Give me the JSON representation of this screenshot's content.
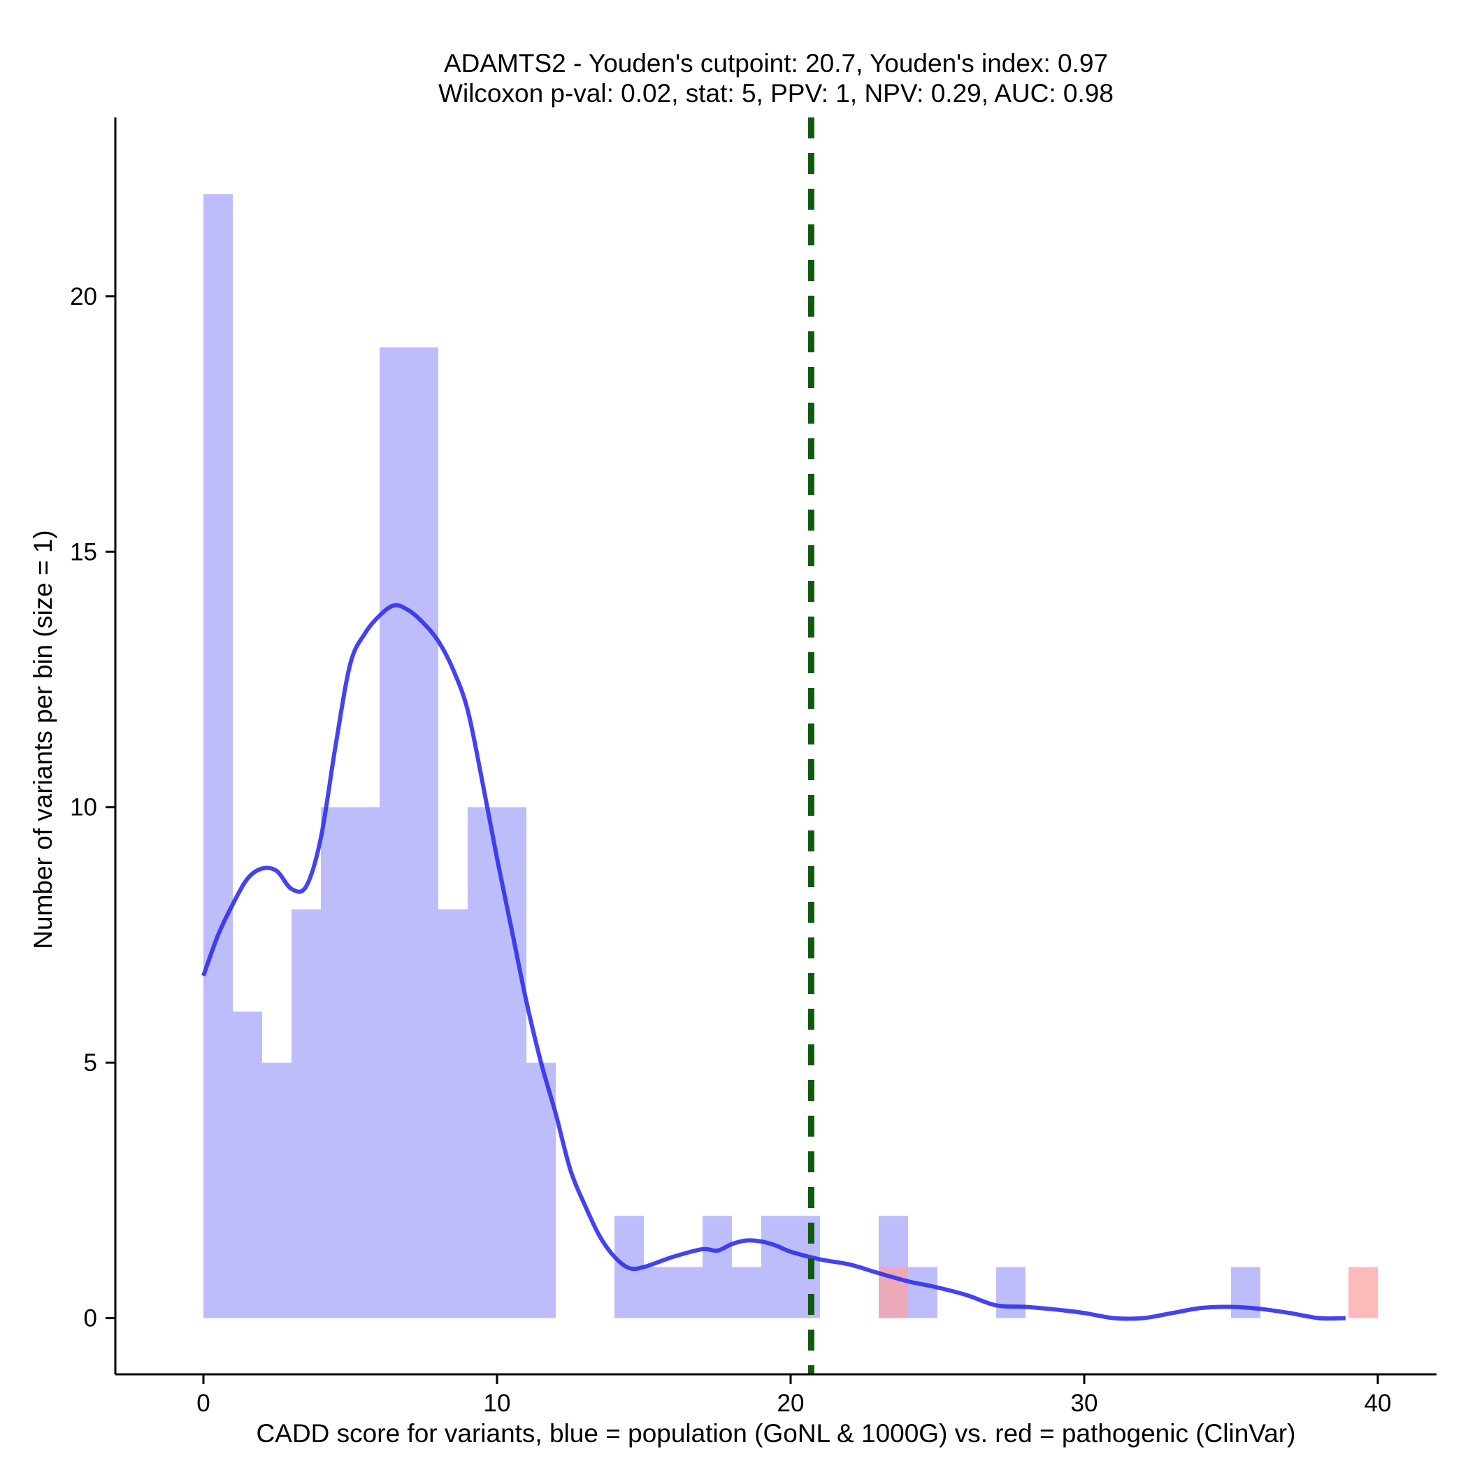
{
  "chart_data": {
    "type": "bar",
    "title_line1": "ADAMTS2 - Youden's cutpoint: 20.7, Youden's index: 0.97",
    "title_line2": "Wilcoxon p-val: 0.02, stat: 5, PPV: 1, NPV: 0.29, AUC: 0.98",
    "xlabel": "CADD score for variants, blue = population (GoNL & 1000G) vs. red = pathogenic (ClinVar)",
    "ylabel": "Number of variants per bin (size = 1)",
    "xlim": [
      -3,
      42
    ],
    "ylim": [
      -1.1,
      23.5
    ],
    "xticks": [
      0,
      10,
      20,
      30,
      40
    ],
    "yticks": [
      0,
      5,
      10,
      15,
      20
    ],
    "grid": false,
    "bin_size": 1,
    "series": [
      {
        "color": "#bdbdfb",
        "bins": [
          {
            "x0": 0,
            "x1": 1,
            "count": 22
          },
          {
            "x0": 1,
            "x1": 2,
            "count": 6
          },
          {
            "x0": 2,
            "x1": 3,
            "count": 5
          },
          {
            "x0": 3,
            "x1": 4,
            "count": 8
          },
          {
            "x0": 4,
            "x1": 5,
            "count": 10
          },
          {
            "x0": 5,
            "x1": 6,
            "count": 10
          },
          {
            "x0": 6,
            "x1": 7,
            "count": 19
          },
          {
            "x0": 7,
            "x1": 8,
            "count": 19
          },
          {
            "x0": 8,
            "x1": 9,
            "count": 8
          },
          {
            "x0": 9,
            "x1": 10,
            "count": 10
          },
          {
            "x0": 10,
            "x1": 11,
            "count": 10
          },
          {
            "x0": 11,
            "x1": 12,
            "count": 5
          },
          {
            "x0": 14,
            "x1": 15,
            "count": 2
          },
          {
            "x0": 15,
            "x1": 16,
            "count": 1
          },
          {
            "x0": 16,
            "x1": 17,
            "count": 1
          },
          {
            "x0": 17,
            "x1": 18,
            "count": 2
          },
          {
            "x0": 18,
            "x1": 19,
            "count": 1
          },
          {
            "x0": 19,
            "x1": 20,
            "count": 2
          },
          {
            "x0": 20,
            "x1": 21,
            "count": 2
          },
          {
            "x0": 23,
            "x1": 24,
            "count": 2
          },
          {
            "x0": 24,
            "x1": 25,
            "count": 1
          },
          {
            "x0": 27,
            "x1": 28,
            "count": 1
          },
          {
            "x0": 35,
            "x1": 36,
            "count": 1
          }
        ]
      },
      {
        "color": "#fba3a3",
        "bins": [
          {
            "x0": 23,
            "x1": 24,
            "count": 1
          },
          {
            "x0": 39,
            "x1": 40,
            "count": 1
          }
        ]
      }
    ],
    "density_curve": {
      "color": "#3333ee",
      "x": [
        0,
        0.5,
        1,
        1.5,
        2,
        2.5,
        3,
        3.5,
        4,
        4.5,
        5,
        5.5,
        6,
        6.5,
        7,
        7.5,
        8,
        8.5,
        9,
        9.5,
        10,
        10.5,
        11,
        11.5,
        12,
        12.5,
        13,
        13.5,
        14,
        14.5,
        15,
        16,
        17,
        17.5,
        18,
        18.5,
        19,
        19.5,
        20,
        21,
        22,
        23,
        24,
        25,
        26,
        27,
        28,
        29,
        30,
        31,
        32,
        33,
        34,
        35,
        36,
        37,
        38,
        38.9
      ],
      "y": [
        6.7,
        7.5,
        8.1,
        8.6,
        8.8,
        8.75,
        8.4,
        8.45,
        9.4,
        11.2,
        12.8,
        13.4,
        13.75,
        13.95,
        13.85,
        13.6,
        13.25,
        12.7,
        11.9,
        10.5,
        9.0,
        7.6,
        6.2,
        5.0,
        4.0,
        2.9,
        2.2,
        1.6,
        1.2,
        0.98,
        1.0,
        1.2,
        1.35,
        1.32,
        1.45,
        1.52,
        1.5,
        1.42,
        1.3,
        1.15,
        1.05,
        0.88,
        0.72,
        0.6,
        0.45,
        0.25,
        0.22,
        0.17,
        0.1,
        0.0,
        0.0,
        0.1,
        0.2,
        0.22,
        0.18,
        0.1,
        0.0,
        0.0
      ]
    },
    "cutpoint": {
      "x": 20.7,
      "color": "#0f5a0f"
    }
  }
}
